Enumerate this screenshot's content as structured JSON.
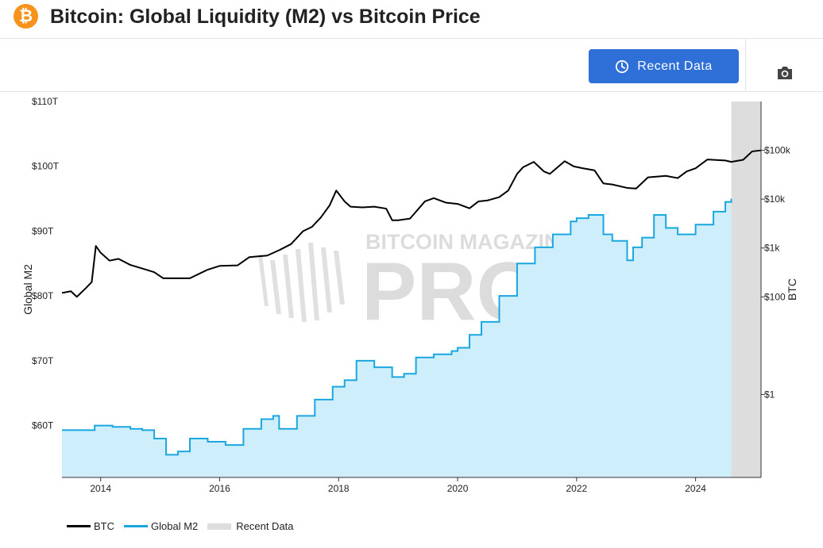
{
  "header": {
    "logo_glyph": "₿",
    "title": "Bitcoin: Global Liquidity (M2) vs Bitcoin Price"
  },
  "toolbar": {
    "recent_button_label": "Recent Data",
    "camera_icon": "camera-icon",
    "clock_icon": "clock-icon"
  },
  "colors": {
    "btc": "#000000",
    "m2_line": "#1aa7e0",
    "m2_fill": "#cdeefa",
    "recent": "#dddddd",
    "button": "#2e6fd8"
  },
  "watermark": {
    "brand": "BITCOIN MAGAZINE",
    "product": "PRO"
  },
  "chart_data": {
    "type": "line",
    "title": "Bitcoin: Global Liquidity (M2) vs Bitcoin Price",
    "xlabel": "",
    "ylabel": "Global M2",
    "ylabel_right": "BTC",
    "xlim": [
      2013.35,
      2025.1
    ],
    "x_ticks": [
      2014,
      2016,
      2018,
      2020,
      2022,
      2024
    ],
    "x_tick_labels": [
      "2014",
      "2016",
      "2018",
      "2020",
      "2022",
      "2024"
    ],
    "y_left": {
      "scale": "linear",
      "ylim": [
        52,
        110
      ],
      "ticks": [
        60,
        70,
        80,
        90,
        100,
        110
      ],
      "tick_labels": [
        "$60T",
        "$70T",
        "$80T",
        "$90T",
        "$100T",
        "$110T"
      ]
    },
    "y_right": {
      "scale": "log",
      "ylim": [
        0.02,
        1000000
      ],
      "ticks": [
        1,
        100,
        1000,
        10000,
        100000
      ],
      "tick_labels": [
        "$1",
        "$100",
        "$1k",
        "$10k",
        "$100k"
      ]
    },
    "recent_data_range": [
      2024.6,
      2025.1
    ],
    "series": [
      {
        "name": "BTC",
        "axis": "right",
        "x": [
          2013.35,
          2013.5,
          2013.6,
          2013.75,
          2013.85,
          2013.92,
          2014.0,
          2014.15,
          2014.3,
          2014.5,
          2014.7,
          2014.9,
          2015.05,
          2015.2,
          2015.5,
          2015.8,
          2016.0,
          2016.3,
          2016.5,
          2016.8,
          2017.0,
          2017.2,
          2017.4,
          2017.55,
          2017.7,
          2017.85,
          2017.96,
          2018.1,
          2018.2,
          2018.4,
          2018.6,
          2018.8,
          2018.9,
          2019.0,
          2019.2,
          2019.45,
          2019.6,
          2019.8,
          2020.0,
          2020.2,
          2020.35,
          2020.5,
          2020.7,
          2020.85,
          2021.0,
          2021.1,
          2021.28,
          2021.45,
          2021.55,
          2021.8,
          2021.95,
          2022.1,
          2022.3,
          2022.45,
          2022.6,
          2022.85,
          2023.0,
          2023.2,
          2023.5,
          2023.7,
          2023.85,
          2024.0,
          2024.2,
          2024.5,
          2024.6,
          2024.8,
          2024.95,
          2025.1
        ],
        "values": [
          120,
          130,
          100,
          150,
          200,
          1100,
          800,
          550,
          600,
          450,
          380,
          320,
          240,
          240,
          240,
          360,
          430,
          440,
          650,
          700,
          900,
          1200,
          2200,
          2700,
          4200,
          7500,
          15000,
          9000,
          7000,
          6800,
          7000,
          6400,
          3700,
          3700,
          4000,
          9000,
          10500,
          8500,
          8000,
          6500,
          9000,
          9400,
          11000,
          15000,
          33000,
          45000,
          58000,
          37000,
          33000,
          60000,
          47000,
          43000,
          39000,
          21000,
          20000,
          17000,
          16500,
          28000,
          30000,
          27000,
          37000,
          43000,
          65000,
          62000,
          58000,
          64000,
          95000,
          100000
        ]
      },
      {
        "name": "Global M2",
        "axis": "left",
        "x": [
          2013.35,
          2013.6,
          2013.9,
          2014.2,
          2014.5,
          2014.7,
          2014.9,
          2015.1,
          2015.3,
          2015.5,
          2015.8,
          2016.1,
          2016.4,
          2016.7,
          2016.9,
          2017.0,
          2017.3,
          2017.6,
          2017.9,
          2018.1,
          2018.3,
          2018.6,
          2018.9,
          2019.1,
          2019.3,
          2019.6,
          2019.9,
          2020.0,
          2020.2,
          2020.4,
          2020.7,
          2021.0,
          2021.3,
          2021.6,
          2021.9,
          2022.0,
          2022.2,
          2022.45,
          2022.6,
          2022.85,
          2022.95,
          2023.1,
          2023.3,
          2023.5,
          2023.7,
          2024.0,
          2024.3,
          2024.5,
          2024.6
        ],
        "values": [
          59.3,
          59.3,
          60.0,
          59.8,
          59.5,
          59.3,
          58.0,
          55.5,
          56.0,
          58.0,
          57.5,
          57.0,
          59.5,
          61.0,
          61.5,
          59.5,
          61.5,
          64.0,
          66.0,
          67.0,
          70.0,
          69.0,
          67.5,
          68.0,
          70.5,
          71.0,
          71.5,
          72.0,
          74.0,
          76.0,
          80.0,
          85.0,
          87.5,
          89.5,
          91.5,
          92.0,
          92.5,
          89.5,
          88.5,
          85.5,
          87.5,
          89.0,
          92.5,
          90.5,
          89.5,
          91.0,
          93.0,
          94.5,
          95.0
        ]
      }
    ]
  },
  "legend": {
    "items": [
      {
        "label": "BTC",
        "color": "#000000"
      },
      {
        "label": "Global M2",
        "color": "#1aa7e0"
      },
      {
        "label": "Recent Data",
        "color": "#dddddd"
      }
    ]
  }
}
